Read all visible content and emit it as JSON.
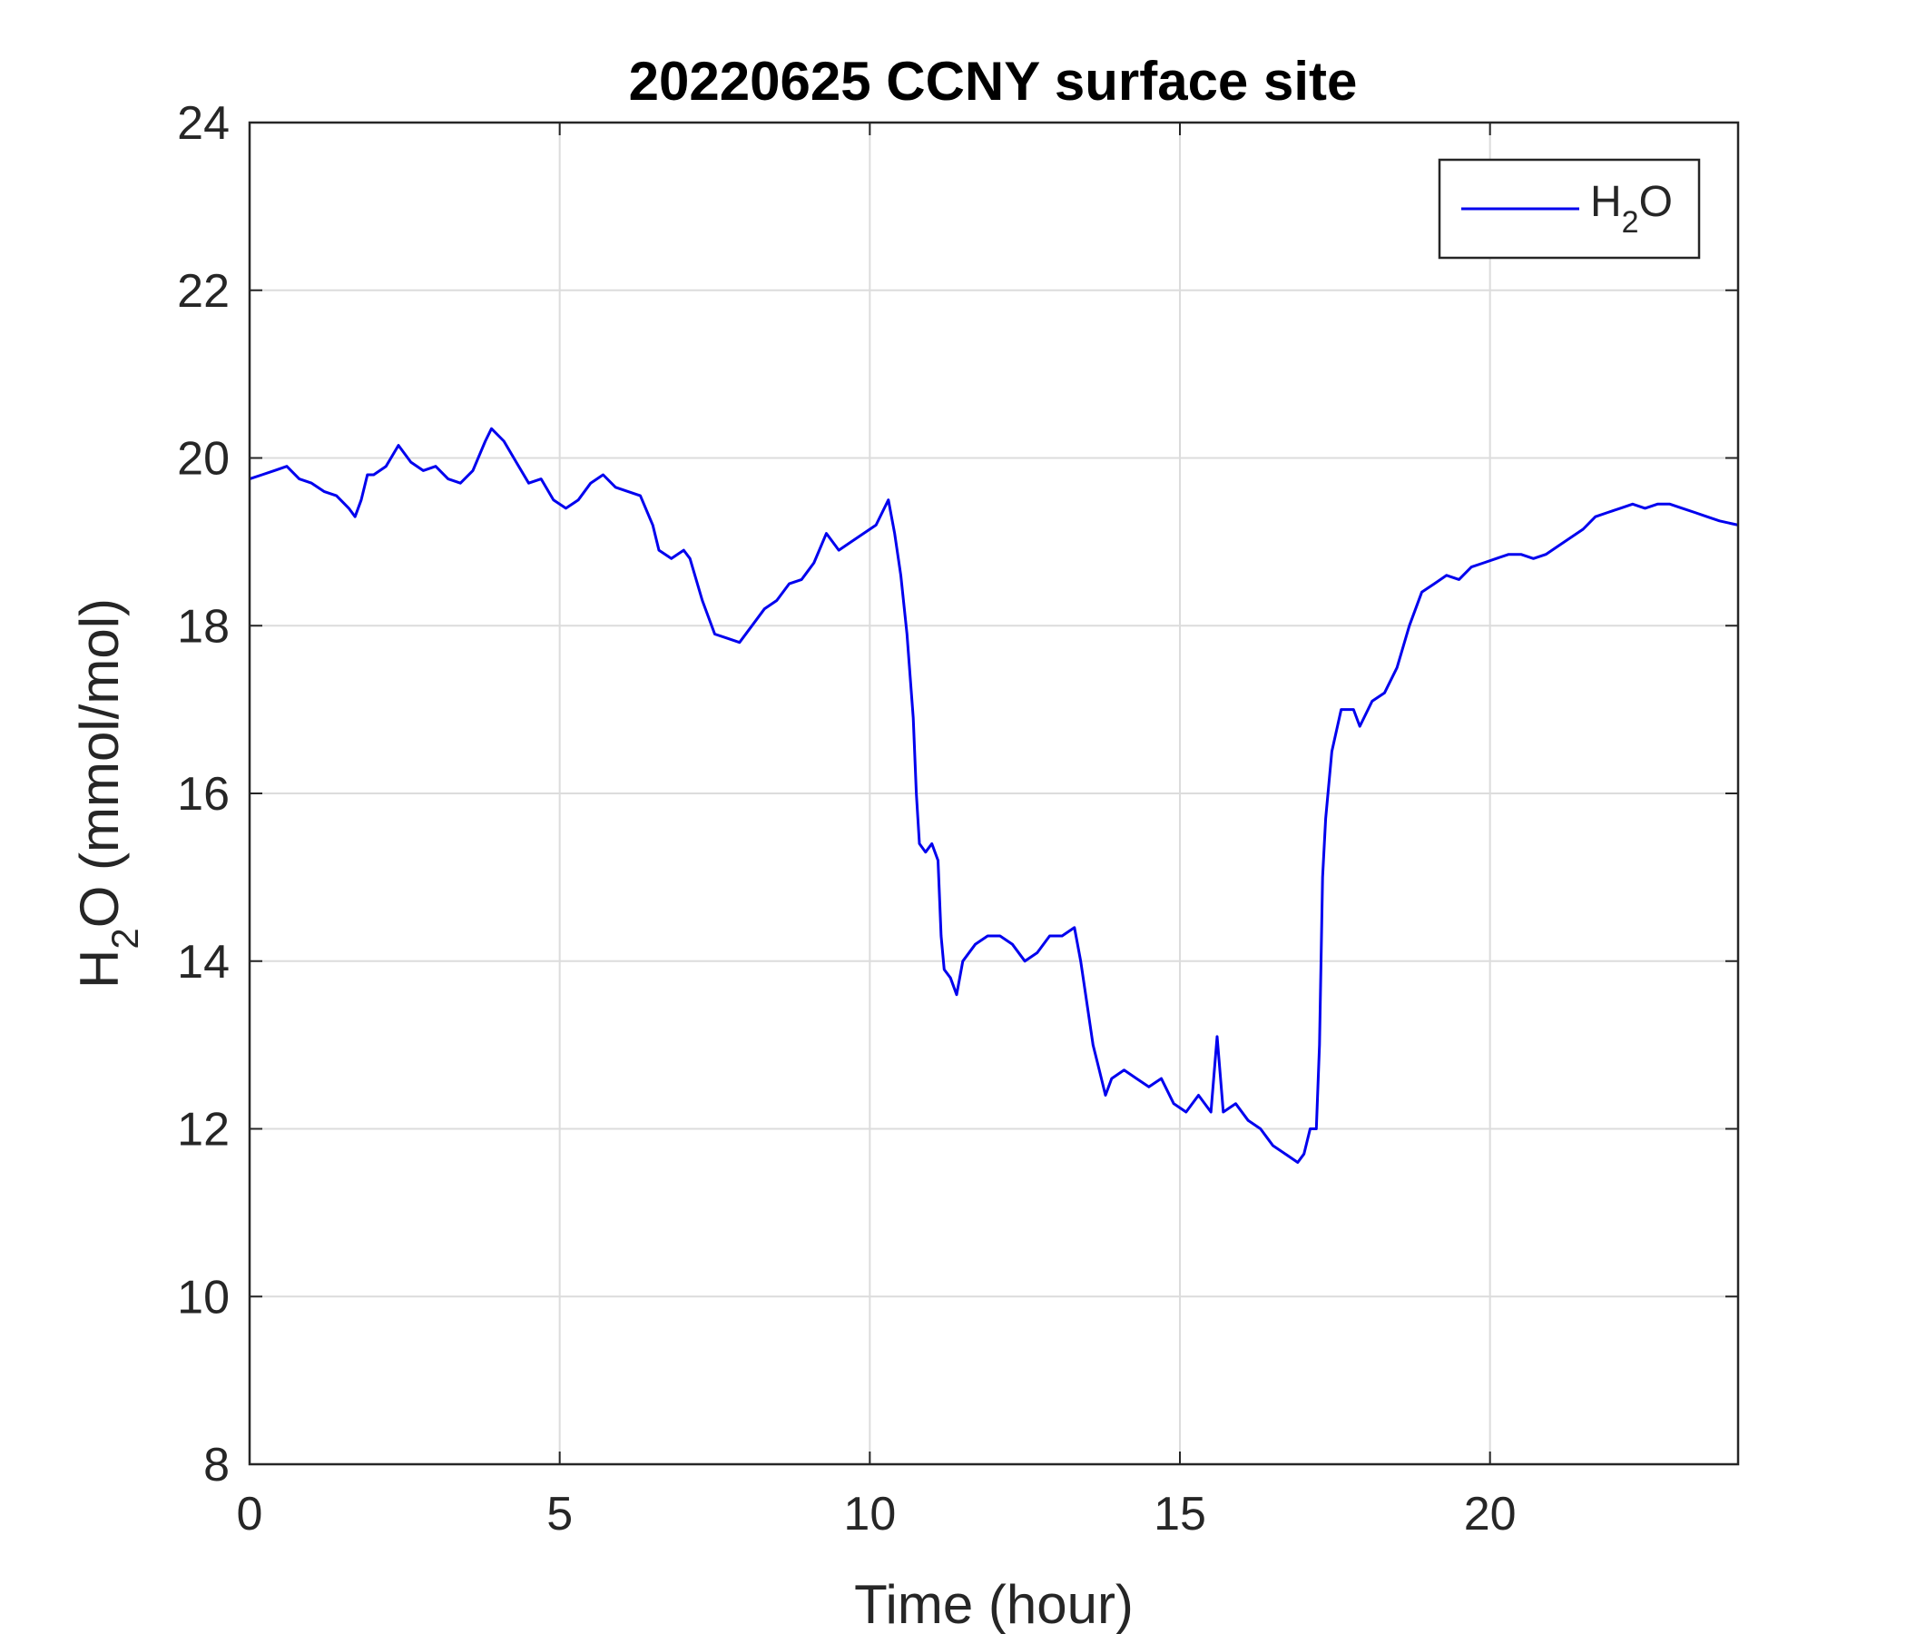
{
  "chart_data": {
    "type": "line",
    "title": "20220625 CCNY surface site",
    "xlabel": "Time (hour)",
    "ylabel": {
      "main": "H",
      "sub": "2",
      "rest": "O (mmol/mol)"
    },
    "xlim": [
      0,
      24
    ],
    "ylim": [
      8,
      24
    ],
    "xticks": [
      0,
      5,
      10,
      15,
      20
    ],
    "yticks": [
      8,
      10,
      12,
      14,
      16,
      18,
      20,
      22,
      24
    ],
    "grid": true,
    "legend_position": "top-right",
    "series": [
      {
        "name": {
          "main": "H",
          "sub": "2",
          "rest": "O"
        },
        "color": "#0000ee",
        "points": [
          [
            0.0,
            19.75
          ],
          [
            0.2,
            19.8
          ],
          [
            0.4,
            19.85
          ],
          [
            0.6,
            19.9
          ],
          [
            0.8,
            19.75
          ],
          [
            1.0,
            19.7
          ],
          [
            1.2,
            19.6
          ],
          [
            1.4,
            19.55
          ],
          [
            1.6,
            19.4
          ],
          [
            1.7,
            19.3
          ],
          [
            1.8,
            19.5
          ],
          [
            1.9,
            19.8
          ],
          [
            2.0,
            19.8
          ],
          [
            2.2,
            19.9
          ],
          [
            2.4,
            20.15
          ],
          [
            2.6,
            19.95
          ],
          [
            2.8,
            19.85
          ],
          [
            3.0,
            19.9
          ],
          [
            3.2,
            19.75
          ],
          [
            3.4,
            19.7
          ],
          [
            3.6,
            19.85
          ],
          [
            3.8,
            20.2
          ],
          [
            3.9,
            20.35
          ],
          [
            4.1,
            20.2
          ],
          [
            4.3,
            19.95
          ],
          [
            4.5,
            19.7
          ],
          [
            4.7,
            19.75
          ],
          [
            4.9,
            19.5
          ],
          [
            5.1,
            19.4
          ],
          [
            5.3,
            19.5
          ],
          [
            5.5,
            19.7
          ],
          [
            5.7,
            19.8
          ],
          [
            5.9,
            19.65
          ],
          [
            6.1,
            19.6
          ],
          [
            6.3,
            19.55
          ],
          [
            6.5,
            19.2
          ],
          [
            6.6,
            18.9
          ],
          [
            6.8,
            18.8
          ],
          [
            7.0,
            18.9
          ],
          [
            7.1,
            18.8
          ],
          [
            7.3,
            18.3
          ],
          [
            7.5,
            17.9
          ],
          [
            7.7,
            17.85
          ],
          [
            7.9,
            17.8
          ],
          [
            8.1,
            18.0
          ],
          [
            8.3,
            18.2
          ],
          [
            8.5,
            18.3
          ],
          [
            8.7,
            18.5
          ],
          [
            8.9,
            18.55
          ],
          [
            9.1,
            18.75
          ],
          [
            9.3,
            19.1
          ],
          [
            9.5,
            18.9
          ],
          [
            9.7,
            19.0
          ],
          [
            9.9,
            19.1
          ],
          [
            10.1,
            19.2
          ],
          [
            10.3,
            19.5
          ],
          [
            10.4,
            19.1
          ],
          [
            10.5,
            18.6
          ],
          [
            10.6,
            17.9
          ],
          [
            10.7,
            16.9
          ],
          [
            10.75,
            16.0
          ],
          [
            10.8,
            15.4
          ],
          [
            10.9,
            15.3
          ],
          [
            11.0,
            15.4
          ],
          [
            11.1,
            15.2
          ],
          [
            11.15,
            14.3
          ],
          [
            11.2,
            13.9
          ],
          [
            11.3,
            13.8
          ],
          [
            11.4,
            13.6
          ],
          [
            11.5,
            14.0
          ],
          [
            11.7,
            14.2
          ],
          [
            11.9,
            14.3
          ],
          [
            12.1,
            14.3
          ],
          [
            12.3,
            14.2
          ],
          [
            12.5,
            14.0
          ],
          [
            12.7,
            14.1
          ],
          [
            12.9,
            14.3
          ],
          [
            13.1,
            14.3
          ],
          [
            13.3,
            14.4
          ],
          [
            13.4,
            14.0
          ],
          [
            13.5,
            13.5
          ],
          [
            13.6,
            13.0
          ],
          [
            13.7,
            12.7
          ],
          [
            13.8,
            12.4
          ],
          [
            13.9,
            12.6
          ],
          [
            14.1,
            12.7
          ],
          [
            14.3,
            12.6
          ],
          [
            14.5,
            12.5
          ],
          [
            14.7,
            12.6
          ],
          [
            14.9,
            12.3
          ],
          [
            15.1,
            12.2
          ],
          [
            15.3,
            12.4
          ],
          [
            15.5,
            12.2
          ],
          [
            15.6,
            13.1
          ],
          [
            15.7,
            12.2
          ],
          [
            15.9,
            12.3
          ],
          [
            16.1,
            12.1
          ],
          [
            16.3,
            12.0
          ],
          [
            16.5,
            11.8
          ],
          [
            16.7,
            11.7
          ],
          [
            16.9,
            11.6
          ],
          [
            17.0,
            11.7
          ],
          [
            17.1,
            12.0
          ],
          [
            17.2,
            12.0
          ],
          [
            17.25,
            13.0
          ],
          [
            17.3,
            15.0
          ],
          [
            17.35,
            15.7
          ],
          [
            17.45,
            16.5
          ],
          [
            17.6,
            17.0
          ],
          [
            17.8,
            17.0
          ],
          [
            17.9,
            16.8
          ],
          [
            18.1,
            17.1
          ],
          [
            18.3,
            17.2
          ],
          [
            18.5,
            17.5
          ],
          [
            18.7,
            18.0
          ],
          [
            18.9,
            18.4
          ],
          [
            19.1,
            18.5
          ],
          [
            19.3,
            18.6
          ],
          [
            19.5,
            18.55
          ],
          [
            19.7,
            18.7
          ],
          [
            19.9,
            18.75
          ],
          [
            20.1,
            18.8
          ],
          [
            20.3,
            18.85
          ],
          [
            20.5,
            18.85
          ],
          [
            20.7,
            18.8
          ],
          [
            20.9,
            18.85
          ],
          [
            21.1,
            18.95
          ],
          [
            21.3,
            19.05
          ],
          [
            21.5,
            19.15
          ],
          [
            21.7,
            19.3
          ],
          [
            21.9,
            19.35
          ],
          [
            22.1,
            19.4
          ],
          [
            22.3,
            19.45
          ],
          [
            22.5,
            19.4
          ],
          [
            22.7,
            19.45
          ],
          [
            22.9,
            19.45
          ],
          [
            23.1,
            19.4
          ],
          [
            23.3,
            19.35
          ],
          [
            23.5,
            19.3
          ],
          [
            23.7,
            19.25
          ],
          [
            24.0,
            19.2
          ]
        ]
      }
    ]
  }
}
